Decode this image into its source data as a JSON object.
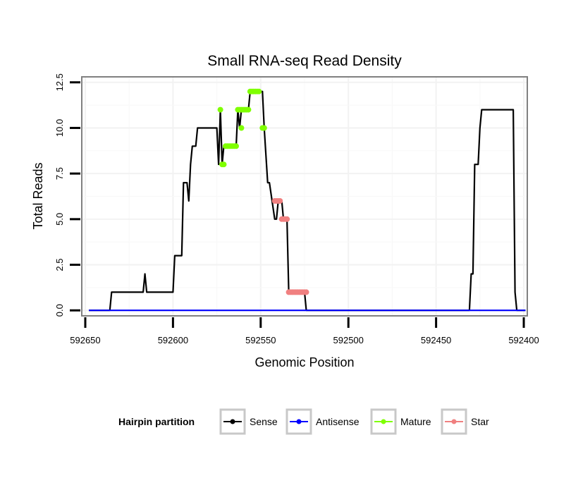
{
  "chart_data": {
    "type": "line",
    "title": "Small RNA-seq Read Density",
    "xlabel": "Genomic Position",
    "ylabel": "Total Reads",
    "xlim": [
      592652,
      592398
    ],
    "ylim": [
      -0.3,
      12.8
    ],
    "x_reversed": true,
    "x_ticks": [
      592650,
      592600,
      592550,
      592500,
      592450,
      592400
    ],
    "x_tick_labels": [
      "592650",
      "592600",
      "592550",
      "592500",
      "592450",
      "592400"
    ],
    "y_ticks": [
      0,
      2.5,
      5,
      7.5,
      10,
      12.5
    ],
    "y_tick_labels": [
      "0.0",
      "2.5",
      "5.0",
      "7.5",
      "10.0",
      "12.5"
    ],
    "grid": true,
    "legend": {
      "title": "Hairpin partition",
      "position": "bottom",
      "entries": [
        "Sense",
        "Antisense",
        "Mature",
        "Star"
      ]
    },
    "series": [
      {
        "name": "Sense",
        "color": "#000000",
        "mode": "line",
        "points": [
          [
            592648,
            0
          ],
          [
            592636,
            0
          ],
          [
            592635,
            1
          ],
          [
            592617,
            1
          ],
          [
            592616,
            2
          ],
          [
            592615,
            1
          ],
          [
            592600,
            1
          ],
          [
            592599,
            3
          ],
          [
            592595,
            3
          ],
          [
            592594,
            7
          ],
          [
            592592,
            7
          ],
          [
            592591,
            6
          ],
          [
            592590,
            8
          ],
          [
            592589,
            9
          ],
          [
            592587,
            9
          ],
          [
            592586,
            10
          ],
          [
            592575,
            10
          ],
          [
            592574,
            8
          ],
          [
            592573,
            11
          ],
          [
            592572,
            8
          ],
          [
            592571,
            9
          ],
          [
            592564,
            9
          ],
          [
            592563,
            11
          ],
          [
            592562,
            10
          ],
          [
            592561,
            11
          ],
          [
            592557,
            11
          ],
          [
            592556,
            12
          ],
          [
            592549,
            12
          ],
          [
            592548,
            10
          ],
          [
            592546,
            7
          ],
          [
            592545,
            7
          ],
          [
            592542,
            5
          ],
          [
            592541,
            5
          ],
          [
            592540,
            6
          ],
          [
            592538,
            6
          ],
          [
            592537,
            5
          ],
          [
            592535,
            5
          ],
          [
            592534,
            1
          ],
          [
            592525,
            1
          ],
          [
            592524,
            0
          ],
          [
            592431,
            0
          ],
          [
            592430,
            2
          ],
          [
            592429,
            2
          ],
          [
            592428,
            8
          ],
          [
            592426,
            8
          ],
          [
            592425,
            10
          ],
          [
            592424,
            11
          ],
          [
            592406,
            11
          ],
          [
            592405,
            1
          ],
          [
            592404,
            0
          ],
          [
            592399,
            0
          ]
        ]
      },
      {
        "name": "Antisense",
        "color": "#0000ff",
        "mode": "line",
        "points": [
          [
            592648,
            0
          ],
          [
            592399,
            0
          ]
        ]
      },
      {
        "name": "Mature",
        "color": "#7fff00",
        "mode": "points",
        "points": [
          [
            592573,
            11
          ],
          [
            592572,
            8
          ],
          [
            592571,
            8
          ],
          [
            592570,
            9
          ],
          [
            592569,
            9
          ],
          [
            592568,
            9
          ],
          [
            592567,
            9
          ],
          [
            592566,
            9
          ],
          [
            592565,
            9
          ],
          [
            592564,
            9
          ],
          [
            592563,
            11
          ],
          [
            592562,
            11
          ],
          [
            592561,
            10
          ],
          [
            592561,
            11
          ],
          [
            592560,
            11
          ],
          [
            592559,
            11
          ],
          [
            592558,
            11
          ],
          [
            592557,
            11
          ],
          [
            592556,
            12
          ],
          [
            592555,
            12
          ],
          [
            592554,
            12
          ],
          [
            592553,
            12
          ],
          [
            592552,
            12
          ],
          [
            592551,
            12
          ],
          [
            592549,
            10
          ],
          [
            592548,
            10
          ]
        ]
      },
      {
        "name": "Star",
        "color": "#f08080",
        "mode": "points",
        "points": [
          [
            592542,
            6
          ],
          [
            592541,
            6
          ],
          [
            592540,
            6
          ],
          [
            592539,
            6
          ],
          [
            592538,
            5
          ],
          [
            592537,
            5
          ],
          [
            592536,
            5
          ],
          [
            592535,
            5
          ],
          [
            592534,
            1
          ],
          [
            592533,
            1
          ],
          [
            592532,
            1
          ],
          [
            592531,
            1
          ],
          [
            592530,
            1
          ],
          [
            592529,
            1
          ],
          [
            592528,
            1
          ],
          [
            592527,
            1
          ],
          [
            592526,
            1
          ],
          [
            592525,
            1
          ],
          [
            592524,
            1
          ]
        ]
      }
    ]
  }
}
